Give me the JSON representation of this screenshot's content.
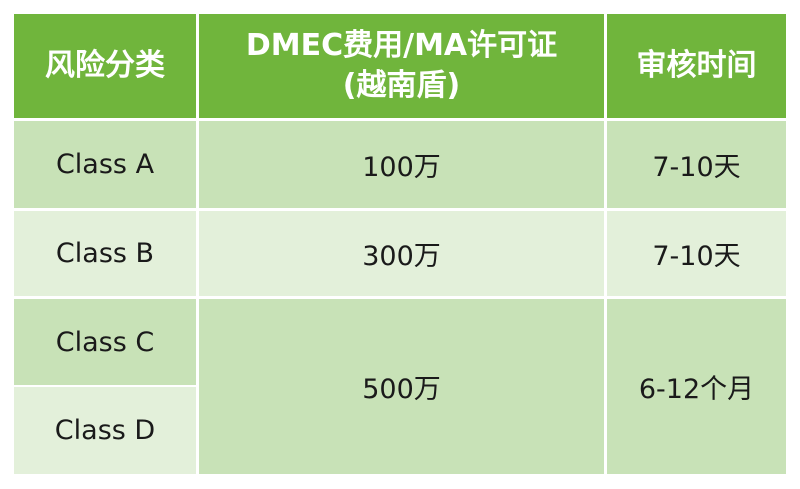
{
  "colors": {
    "header": "#70b53c",
    "row_dark": "#c8e2b7",
    "row_light": "#e3f0da"
  },
  "table": {
    "headers": [
      "风险分类",
      "DMEC费用/MA许可证",
      "(越南盾)",
      "审核时间"
    ],
    "rows": [
      {
        "class": "Class A",
        "fee": "100万",
        "time": "7-10天"
      },
      {
        "class": "Class B",
        "fee": "300万",
        "time": "7-10天"
      },
      {
        "class": "Class C",
        "fee": "500万",
        "time": "6-12个月"
      },
      {
        "class": "Class D"
      }
    ]
  }
}
